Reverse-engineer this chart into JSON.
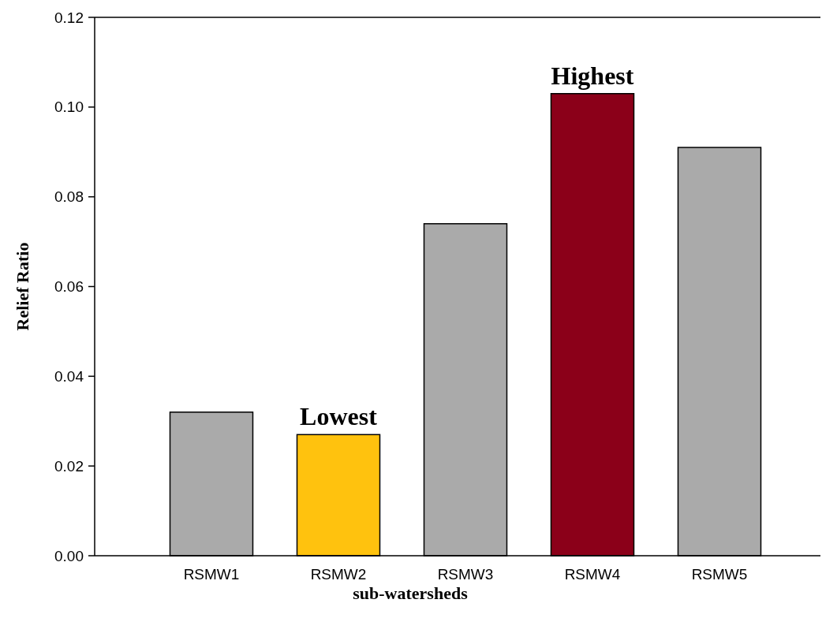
{
  "chart_data": {
    "type": "bar",
    "xlabel": "sub-watersheds",
    "ylabel": "Relief Ratio",
    "categories": [
      "RSMW1",
      "RSMW2",
      "RSMW3",
      "RSMW4",
      "RSMW5"
    ],
    "values": [
      0.032,
      0.027,
      0.074,
      0.103,
      0.091
    ],
    "colors": [
      "#aaaaaa",
      "#ffc20e",
      "#aaaaaa",
      "#8b0019",
      "#aaaaaa"
    ],
    "ylim": [
      0,
      0.12
    ],
    "yticks": [
      {
        "value": 0,
        "label": "0.00"
      },
      {
        "value": 0.02,
        "label": "0.02"
      },
      {
        "value": 0.04,
        "label": "0.04"
      },
      {
        "value": 0.06,
        "label": "0.06"
      },
      {
        "value": 0.08,
        "label": "0.08"
      },
      {
        "value": 0.1,
        "label": "0.10"
      },
      {
        "value": 0.12,
        "label": "0.12"
      }
    ],
    "annotations": [
      {
        "text": "Highest",
        "x": "RSMW4",
        "y": 0.103
      },
      {
        "text": "Lowest",
        "x": "RSMW2",
        "y": 0.027
      }
    ],
    "grid": false
  }
}
